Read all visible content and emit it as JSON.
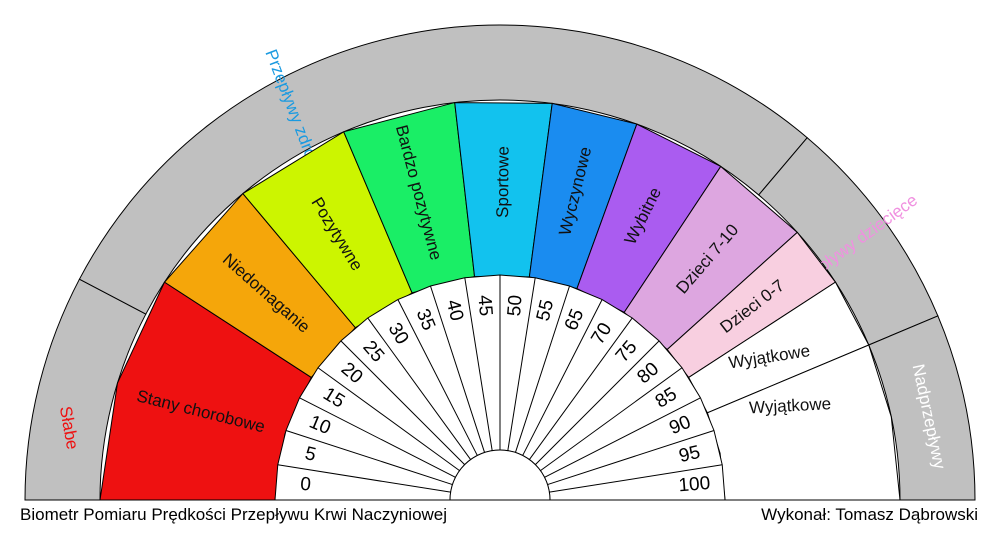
{
  "title": "Biometr Pomiaru Prędkości Przepływu Krwi Naczyniowej",
  "author": "Wykonał: Tomasz Dąbrowski",
  "scale": {
    "min": 0,
    "max": 100,
    "ticks": [
      "0",
      "5",
      "10",
      "15",
      "20",
      "25",
      "30",
      "35",
      "40",
      "45",
      "50",
      "55",
      "65",
      "70",
      "75",
      "80",
      "85",
      "90",
      "95",
      "100"
    ]
  },
  "zones": [
    {
      "label": "Stany chorobowe",
      "color": "#ee1111"
    },
    {
      "label": "Niedomaganie",
      "color": "#f5a60a"
    },
    {
      "label": "Pozytywne",
      "color": "#ccf500"
    },
    {
      "label": "Bardzo pozytywne",
      "color": "#1aee66"
    },
    {
      "label": "Sportowe",
      "color": "#12c2ee"
    },
    {
      "label": "Wyczynowe",
      "color": "#1a8cf0"
    },
    {
      "label": "Wybitne",
      "color": "#aa5cf0"
    },
    {
      "label": "Dzieci 7-10",
      "color": "#dda6e0"
    },
    {
      "label": "Dzieci 0-7",
      "color": "#f8cfe0"
    },
    {
      "label": "Wyjątkowe",
      "color": "#ffffff"
    },
    {
      "label": "Wyjątkowe",
      "color": "#ffffff"
    }
  ],
  "categories": [
    {
      "label": "Słabe",
      "color": "#ee1111"
    },
    {
      "label": "Przepływy zdrowe",
      "color": "#1a9ae0"
    },
    {
      "label": "Przepływy dziecięce",
      "color": "#f090e0"
    },
    {
      "label": "Nadprzepływy",
      "color": "#ffffff"
    }
  ],
  "colors": {
    "outer_band": "#c0c0c0",
    "border": "#000000",
    "tick_band": "#ffffff"
  }
}
